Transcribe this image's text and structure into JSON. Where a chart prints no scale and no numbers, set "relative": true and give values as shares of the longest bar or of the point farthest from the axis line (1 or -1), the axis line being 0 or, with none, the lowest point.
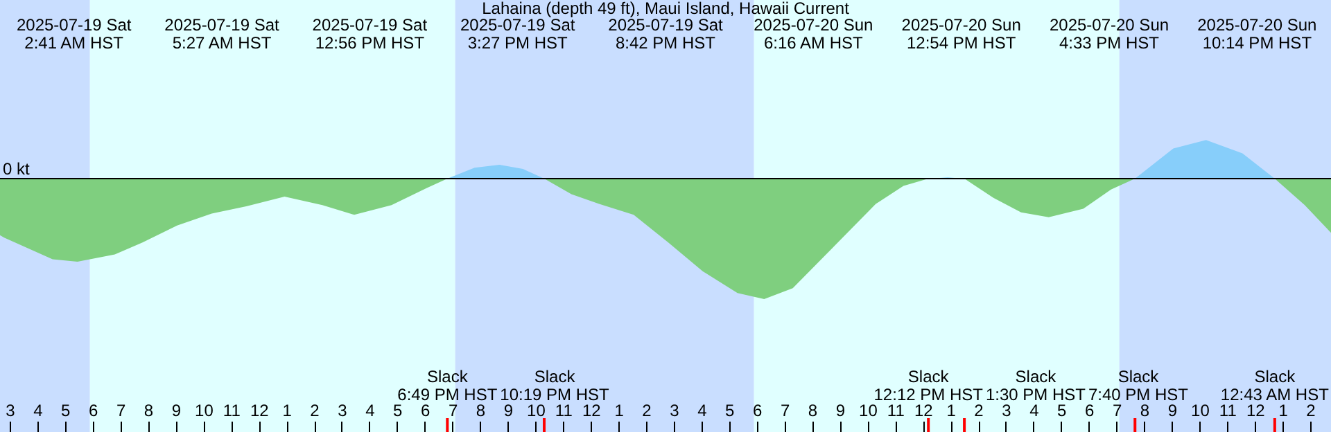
{
  "chart_data": {
    "type": "area",
    "title": "Lahaina (depth 49 ft), Maui Island, Hawaii Current",
    "relative": true,
    "x": [
      "2025-07-19T02:39",
      "2025-07-19T02:48",
      "2025-07-19T04:33",
      "2025-07-19T05:27",
      "2025-07-19T06:48",
      "2025-07-19T07:48",
      "2025-07-19T09:03",
      "2025-07-19T10:18",
      "2025-07-19T11:33",
      "2025-07-19T12:56",
      "2025-07-19T14:18",
      "2025-07-19T15:27",
      "2025-07-19T16:48",
      "2025-07-19T18:03",
      "2025-07-19T18:49",
      "2025-07-19T19:48",
      "2025-07-19T20:42",
      "2025-07-19T21:33",
      "2025-07-19T22:19",
      "2025-07-19T23:18",
      "2025-07-20T00:18",
      "2025-07-20T01:33",
      "2025-07-20T02:48",
      "2025-07-20T04:03",
      "2025-07-20T05:18",
      "2025-07-20T06:16",
      "2025-07-20T07:18",
      "2025-07-20T08:48",
      "2025-07-20T10:18",
      "2025-07-20T11:18",
      "2025-07-20T12:12",
      "2025-07-20T12:54",
      "2025-07-20T13:30",
      "2025-07-20T14:33",
      "2025-07-20T15:33",
      "2025-07-20T16:33",
      "2025-07-20T17:48",
      "2025-07-20T18:48",
      "2025-07-20T19:40",
      "2025-07-20T21:03",
      "2025-07-20T22:14",
      "2025-07-20T23:33",
      "2025-07-21T00:43",
      "2025-07-21T01:48",
      "2025-07-21T02:45"
    ],
    "series": [
      {
        "color": "#7fcf7f",
        "values": [
          -0.47,
          -0.49,
          -0.67,
          -0.69,
          -0.63,
          -0.53,
          -0.39,
          -0.29,
          -0.23,
          -0.15,
          -0.22,
          -0.3,
          -0.22,
          -0.08,
          0,
          null,
          null,
          null,
          0,
          -0.13,
          -0.21,
          -0.3,
          -0.53,
          -0.77,
          -0.95,
          -1,
          -0.91,
          -0.56,
          -0.21,
          -0.06,
          0,
          null,
          0,
          -0.16,
          -0.28,
          -0.32,
          -0.25,
          -0.09,
          0,
          null,
          null,
          null,
          0,
          -0.22,
          -0.45
        ]
      },
      {
        "color": "#87cefa",
        "values": [
          null,
          null,
          null,
          null,
          null,
          null,
          null,
          null,
          null,
          null,
          null,
          null,
          null,
          null,
          0,
          0.09,
          0.115,
          0.08,
          0,
          null,
          null,
          null,
          null,
          null,
          null,
          null,
          null,
          null,
          null,
          null,
          0,
          0.01,
          0,
          null,
          null,
          null,
          null,
          null,
          0,
          0.25,
          0.32,
          0.21,
          0,
          null,
          null
        ]
      }
    ],
    "xlim": [
      "2025-07-19T02:39",
      "2025-07-21T02:45"
    ],
    "xticks": [
      {
        "value": "2025-07-19T03:00",
        "label": "3"
      },
      {
        "value": "2025-07-19T04:00",
        "label": "4"
      },
      {
        "value": "2025-07-19T05:00",
        "label": "5"
      },
      {
        "value": "2025-07-19T06:00",
        "label": "6"
      },
      {
        "value": "2025-07-19T07:00",
        "label": "7"
      },
      {
        "value": "2025-07-19T08:00",
        "label": "8"
      },
      {
        "value": "2025-07-19T09:00",
        "label": "9"
      },
      {
        "value": "2025-07-19T10:00",
        "label": "10"
      },
      {
        "value": "2025-07-19T11:00",
        "label": "11"
      },
      {
        "value": "2025-07-19T12:00",
        "label": "12"
      },
      {
        "value": "2025-07-19T13:00",
        "label": "1"
      },
      {
        "value": "2025-07-19T14:00",
        "label": "2"
      },
      {
        "value": "2025-07-19T15:00",
        "label": "3"
      },
      {
        "value": "2025-07-19T16:00",
        "label": "4"
      },
      {
        "value": "2025-07-19T17:00",
        "label": "5"
      },
      {
        "value": "2025-07-19T18:00",
        "label": "6"
      },
      {
        "value": "2025-07-19T19:00",
        "label": "7"
      },
      {
        "value": "2025-07-19T20:00",
        "label": "8"
      },
      {
        "value": "2025-07-19T21:00",
        "label": "9"
      },
      {
        "value": "2025-07-19T22:00",
        "label": "10"
      },
      {
        "value": "2025-07-19T23:00",
        "label": "11"
      },
      {
        "value": "2025-07-20T00:00",
        "label": "12"
      },
      {
        "value": "2025-07-20T01:00",
        "label": "1"
      },
      {
        "value": "2025-07-20T02:00",
        "label": "2"
      },
      {
        "value": "2025-07-20T03:00",
        "label": "3"
      },
      {
        "value": "2025-07-20T04:00",
        "label": "4"
      },
      {
        "value": "2025-07-20T05:00",
        "label": "5"
      },
      {
        "value": "2025-07-20T06:00",
        "label": "6"
      },
      {
        "value": "2025-07-20T07:00",
        "label": "7"
      },
      {
        "value": "2025-07-20T08:00",
        "label": "8"
      },
      {
        "value": "2025-07-20T09:00",
        "label": "9"
      },
      {
        "value": "2025-07-20T10:00",
        "label": "10"
      },
      {
        "value": "2025-07-20T11:00",
        "label": "11"
      },
      {
        "value": "2025-07-20T12:00",
        "label": "12"
      },
      {
        "value": "2025-07-20T13:00",
        "label": "1"
      },
      {
        "value": "2025-07-20T14:00",
        "label": "2"
      },
      {
        "value": "2025-07-20T15:00",
        "label": "3"
      },
      {
        "value": "2025-07-20T16:00",
        "label": "4"
      },
      {
        "value": "2025-07-20T17:00",
        "label": "5"
      },
      {
        "value": "2025-07-20T18:00",
        "label": "6"
      },
      {
        "value": "2025-07-20T19:00",
        "label": "7"
      },
      {
        "value": "2025-07-20T20:00",
        "label": "8"
      },
      {
        "value": "2025-07-20T21:00",
        "label": "9"
      },
      {
        "value": "2025-07-20T22:00",
        "label": "10"
      },
      {
        "value": "2025-07-20T23:00",
        "label": "11"
      },
      {
        "value": "2025-07-21T00:00",
        "label": "12"
      },
      {
        "value": "2025-07-21T01:00",
        "label": "1"
      },
      {
        "value": "2025-07-21T02:00",
        "label": "2"
      }
    ],
    "bands": [
      {
        "axis": "x",
        "from": "2025-07-19T02:39",
        "to": "2025-07-19T05:54",
        "color": "#c9deff"
      },
      {
        "axis": "x",
        "from": "2025-07-19T05:54",
        "to": "2025-07-19T19:06",
        "color": "#e0ffff"
      },
      {
        "axis": "x",
        "from": "2025-07-19T19:06",
        "to": "2025-07-20T05:54",
        "color": "#c9deff"
      },
      {
        "axis": "x",
        "from": "2025-07-20T05:54",
        "to": "2025-07-20T19:06",
        "color": "#e0ffff"
      },
      {
        "axis": "x",
        "from": "2025-07-20T19:06",
        "to": "2025-07-21T02:45",
        "color": "#c9deff"
      }
    ],
    "ref_lines": [
      {
        "axis": "y",
        "value": 0,
        "label": "0 kt",
        "color": "#000000"
      },
      {
        "axis": "x",
        "value": "2025-07-19T18:49",
        "label": "Slack\n6:49 PM HST",
        "color": "#ff0000"
      },
      {
        "axis": "x",
        "value": "2025-07-19T22:19",
        "label": "Slack\n10:19 PM HST",
        "color": "#ff0000"
      },
      {
        "axis": "x",
        "value": "2025-07-20T12:12",
        "label": "Slack\n12:12 PM HST",
        "color": "#ff0000"
      },
      {
        "axis": "x",
        "value": "2025-07-20T13:30",
        "label": "Slack\n1:30 PM HST",
        "color": "#ff0000"
      },
      {
        "axis": "x",
        "value": "2025-07-20T19:40",
        "label": "Slack\n7:40 PM HST",
        "color": "#ff0000"
      },
      {
        "axis": "x",
        "value": "2025-07-21T00:43",
        "label": "Slack\n12:43 AM HST",
        "color": "#ff0000"
      }
    ],
    "annotations": [
      "2025-07-19 Sat\n2:41 AM HST",
      "2025-07-19 Sat\n5:27 AM HST",
      "2025-07-19 Sat\n12:56 PM HST",
      "2025-07-19 Sat\n3:27 PM HST",
      "2025-07-19 Sat\n8:42 PM HST",
      "2025-07-20 Sun\n6:16 AM HST",
      "2025-07-20 Sun\n12:54 PM HST",
      "2025-07-20 Sun\n4:33 PM HST",
      "2025-07-20 Sun\n10:14 PM HST"
    ]
  }
}
